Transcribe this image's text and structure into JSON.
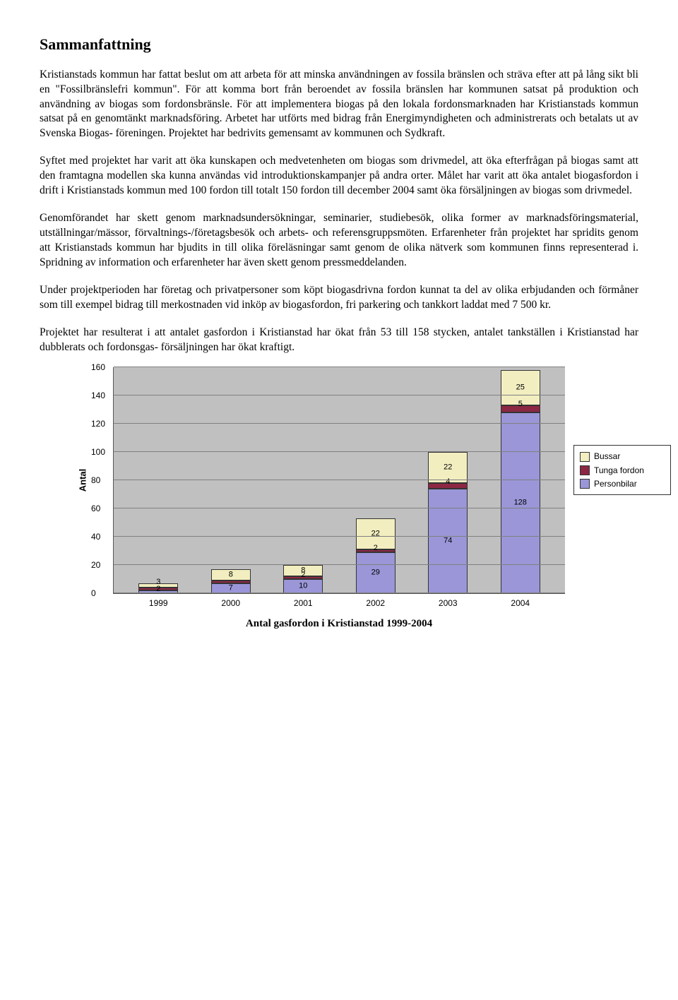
{
  "title": "Sammanfattning",
  "paragraphs": {
    "p1": "Kristianstads kommun har fattat beslut om att arbeta för att minska användningen av fossila bränslen och sträva efter att på lång sikt bli en \"Fossilbränslefri kommun\". För att komma bort från beroendet av fossila bränslen har kommunen satsat på produktion och användning av biogas som fordonsbränsle. För att implementera biogas på den lokala fordonsmarknaden har Kristianstads kommun satsat på en genomtänkt marknadsföring. Arbetet har utförts med bidrag från Energimyndigheten och administrerats och betalats ut av Svenska Biogas- föreningen. Projektet har bedrivits gemensamt av kommunen och Sydkraft.",
    "p2": "Syftet med projektet har varit att öka kunskapen och medvetenheten om biogas som drivmedel, att öka efterfrågan på biogas samt att den framtagna modellen ska kunna användas vid introduktionskampanjer på andra orter. Målet har varit att öka antalet biogasfordon i drift i Kristianstads kommun med 100 fordon till totalt 150 fordon till december 2004 samt öka försäljningen av biogas som drivmedel.",
    "p3": "Genomförandet har skett genom marknadsundersökningar, seminarier, studiebesök, olika former av marknadsföringsmaterial, utställningar/mässor, förvaltnings-/företagsbesök och arbets- och referensgruppsmöten. Erfarenheter från projektet har spridits genom att Kristianstads kommun har bjudits in till olika föreläsningar samt genom de olika nätverk som kommunen finns representerad i. Spridning av information och erfarenheter har även skett genom pressmeddelanden.",
    "p4": "Under projektperioden har företag och privatpersoner som köpt biogasdrivna fordon kunnat ta del av olika erbjudanden och förmåner som till exempel bidrag till merkostnaden vid inköp av biogasfordon, fri parkering och tankkort laddat med 7 500 kr.",
    "p5": "Projektet har resulterat i att antalet gasfordon i Kristianstad har ökat från 53 till 158 stycken, antalet tankställen i Kristianstad har dubblerats och fordonsgas- försäljningen har ökat kraftigt."
  },
  "chart": {
    "type": "stacked-bar",
    "ylabel": "Antal",
    "ymax": 160,
    "ytick_step": 20,
    "categories": [
      "1999",
      "2000",
      "2001",
      "2002",
      "2003",
      "2004"
    ],
    "series": [
      {
        "name": "Bussar",
        "color": "#f2eec0",
        "values": [
          3,
          8,
          8,
          22,
          22,
          25
        ]
      },
      {
        "name": "Tunga fordon",
        "color": "#8c2844",
        "values": [
          2,
          2,
          2,
          2,
          4,
          5
        ]
      },
      {
        "name": "Personbilar",
        "color": "#9a96d8",
        "values": [
          2,
          7,
          10,
          29,
          74,
          128
        ]
      }
    ],
    "data_labels": {
      "1999": [
        "3",
        "2"
      ],
      "2000": [
        "8",
        "7"
      ],
      "2001": [
        "8",
        "2",
        "10"
      ],
      "2002": [
        "22",
        "2",
        "29"
      ],
      "2003": [
        "22",
        "4",
        "74"
      ],
      "2004": [
        "25",
        "5",
        "128"
      ]
    },
    "background_color": "#c0c0c0",
    "grid_color": "#808080",
    "caption": "Antal gasfordon i Kristianstad 1999-2004"
  }
}
